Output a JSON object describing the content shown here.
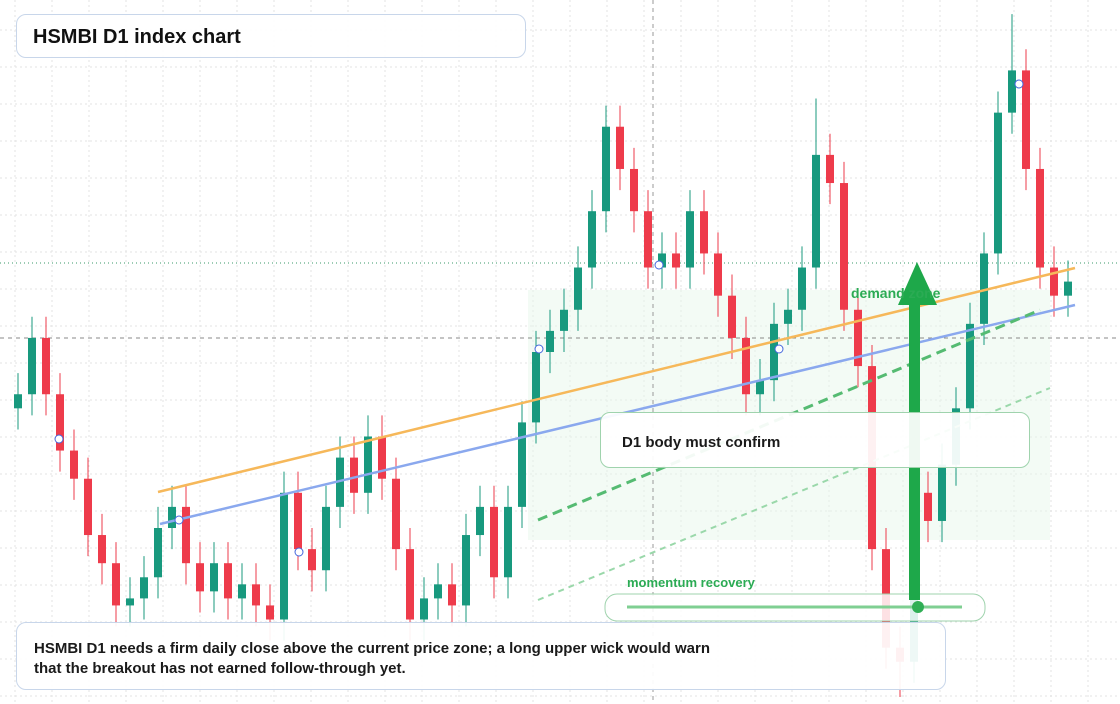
{
  "chart_data": {
    "type": "candlestick",
    "title": "HSMBI D1 index chart",
    "annotations": {
      "zone": "demand zone",
      "confirm": "D1 body must confirm",
      "momentum": "momentum recovery",
      "note": "HSMBI D1 needs a firm daily close above the current price zone; a long upper wick would warn that the breakout has not earned follow-through yet."
    },
    "ylim": [
      0,
      100
    ],
    "up_color": "#18997e",
    "down_color": "#ee3b4b",
    "open": [
      42,
      44,
      52,
      44,
      36,
      32,
      24,
      20,
      14,
      15,
      18,
      25,
      28,
      20,
      16,
      20,
      15,
      17,
      14,
      12,
      30,
      22,
      19,
      28,
      35,
      30,
      38,
      32,
      22,
      12,
      15,
      17,
      14,
      24,
      28,
      18,
      28,
      40,
      50,
      53,
      56,
      62,
      70,
      82,
      76,
      70,
      62,
      64,
      62,
      70,
      64,
      58,
      52,
      44,
      46,
      54,
      56,
      62,
      78,
      74,
      56,
      48,
      22,
      8,
      6,
      30,
      26,
      34,
      42,
      54,
      64,
      84,
      90,
      76,
      62,
      58
    ],
    "high": [
      47,
      55,
      55,
      47,
      39,
      35,
      27,
      23,
      18,
      21,
      28,
      31,
      31,
      23,
      23,
      23,
      20,
      20,
      17,
      33,
      33,
      25,
      31,
      38,
      38,
      41,
      41,
      35,
      25,
      18,
      20,
      20,
      27,
      31,
      31,
      31,
      43,
      53,
      56,
      59,
      65,
      73,
      85,
      85,
      79,
      73,
      67,
      67,
      73,
      73,
      67,
      61,
      55,
      49,
      57,
      59,
      65,
      86,
      81,
      77,
      59,
      51,
      25,
      11,
      33,
      33,
      37,
      45,
      57,
      67,
      87,
      98,
      93,
      79,
      65,
      63
    ],
    "low": [
      39,
      41,
      41,
      33,
      29,
      21,
      17,
      11,
      11,
      12,
      15,
      22,
      17,
      13,
      13,
      12,
      12,
      11,
      9,
      9,
      19,
      16,
      16,
      25,
      27,
      27,
      29,
      19,
      9,
      9,
      12,
      11,
      11,
      21,
      15,
      15,
      25,
      37,
      47,
      50,
      53,
      59,
      67,
      73,
      67,
      59,
      59,
      59,
      59,
      61,
      55,
      49,
      41,
      41,
      43,
      51,
      53,
      59,
      71,
      53,
      45,
      19,
      5,
      1,
      3,
      23,
      23,
      31,
      39,
      51,
      61,
      81,
      73,
      59,
      55,
      55
    ],
    "close": [
      44,
      52,
      44,
      36,
      32,
      24,
      20,
      14,
      15,
      18,
      25,
      28,
      20,
      16,
      20,
      15,
      17,
      14,
      12,
      30,
      22,
      19,
      28,
      35,
      30,
      38,
      32,
      22,
      12,
      15,
      17,
      14,
      24,
      28,
      18,
      28,
      40,
      50,
      53,
      56,
      62,
      70,
      82,
      76,
      70,
      62,
      64,
      62,
      70,
      64,
      58,
      52,
      44,
      46,
      54,
      56,
      62,
      78,
      74,
      56,
      48,
      22,
      8,
      6,
      30,
      26,
      34,
      42,
      54,
      64,
      84,
      90,
      76,
      62,
      58,
      60
    ]
  }
}
